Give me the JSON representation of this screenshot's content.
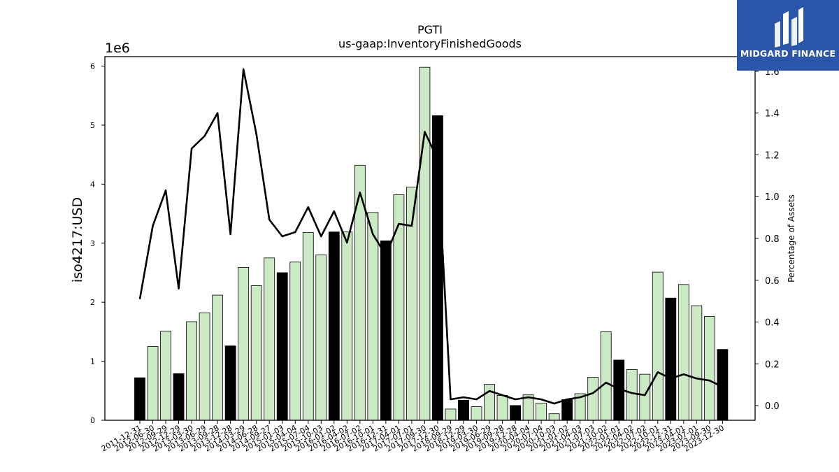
{
  "chart_data": {
    "type": "bar",
    "title": "PGTI",
    "subtitle": "us-gaap:InventoryFinishedGoods",
    "ylabel": "iso4217:USD",
    "y_offset_label": "1e6",
    "y2label": "Percentage of Assets",
    "ylim": [
      0,
      6160000
    ],
    "y2lim": [
      -0.07,
      1.67
    ],
    "yticks": [
      "0",
      "1",
      "2",
      "3",
      "4",
      "5",
      "6"
    ],
    "y2ticks": [
      "0.0",
      "0.2",
      "0.4",
      "0.6",
      "0.8",
      "1.0",
      "1.2",
      "1.4",
      "1.6"
    ],
    "grid": false,
    "categories": [
      "2011-12-31",
      "2012-06-30",
      "2012-09-29",
      "2012-12-29",
      "2013-03-30",
      "2013-06-29",
      "2013-09-28",
      "2013-12-28",
      "2014-03-29",
      "2014-06-28",
      "2014-09-27",
      "2015-01-03",
      "2015-04-04",
      "2015-07-04",
      "2015-10-03",
      "2016-01-02",
      "2016-04-02",
      "2016-07-02",
      "2016-10-01",
      "2016-12-31",
      "2017-04-01",
      "2017-07-01",
      "2017-09-30",
      "2017-12-30",
      "2018-09-29",
      "2018-12-29",
      "2019-03-30",
      "2019-06-29",
      "2019-09-28",
      "2019-12-28",
      "2020-04-04",
      "2020-07-04",
      "2020-10-03",
      "2021-01-02",
      "2021-04-03",
      "2021-07-03",
      "2021-10-02",
      "2022-01-01",
      "2022-04-02",
      "2022-07-02",
      "2022-10-01",
      "2022-12-31",
      "2023-04-01",
      "2023-07-01",
      "2023-09-30",
      "2023-12-30"
    ],
    "series": [
      {
        "values": [
          720000,
          1250000,
          1510000,
          790000,
          1670000,
          1820000,
          2120000,
          1260000,
          2590000,
          2280000,
          2750000,
          2500000,
          2680000,
          3180000,
          2800000,
          3190000,
          3190000,
          4320000,
          3520000,
          3040000,
          3820000,
          3950000,
          5980000,
          5160000,
          190000,
          340000,
          230000,
          610000,
          420000,
          250000,
          430000,
          290000,
          110000,
          350000,
          450000,
          730000,
          1500000,
          1020000,
          860000,
          780000,
          2510000,
          2070000,
          2300000,
          1940000,
          1760000,
          1200000
        ],
        "year_end": [
          true,
          false,
          false,
          true,
          false,
          false,
          false,
          true,
          false,
          false,
          false,
          true,
          false,
          false,
          false,
          true,
          false,
          false,
          false,
          true,
          false,
          false,
          false,
          true,
          false,
          true,
          false,
          false,
          false,
          true,
          false,
          false,
          false,
          true,
          false,
          false,
          false,
          true,
          false,
          false,
          false,
          true,
          false,
          false,
          false,
          true
        ]
      },
      {
        "axis": "right",
        "values": [
          0.51,
          0.86,
          1.03,
          0.56,
          1.23,
          1.29,
          1.4,
          0.82,
          1.61,
          1.3,
          0.89,
          0.81,
          0.83,
          0.95,
          0.81,
          0.93,
          0.78,
          1.02,
          0.82,
          0.72,
          0.87,
          0.86,
          1.31,
          1.18,
          0.03,
          0.04,
          0.03,
          0.07,
          0.05,
          0.03,
          0.04,
          0.03,
          0.01,
          0.03,
          0.04,
          0.06,
          0.11,
          0.08,
          0.06,
          0.05,
          0.16,
          0.13,
          0.15,
          0.13,
          0.12,
          0.09
        ]
      }
    ],
    "colors": {
      "year_end_bar": "#000000",
      "quarter_bar": "#cce9c5",
      "bar_edge": "#000000",
      "line": "#000000"
    }
  },
  "brand": {
    "name": "MIDGARD FINANCE",
    "bg": "#2a55a8"
  }
}
